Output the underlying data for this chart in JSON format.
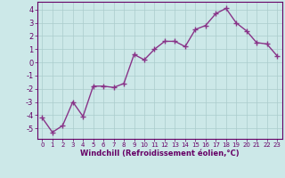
{
  "x": [
    0,
    1,
    2,
    3,
    4,
    5,
    6,
    7,
    8,
    9,
    10,
    11,
    12,
    13,
    14,
    15,
    16,
    17,
    18,
    19,
    20,
    21,
    22,
    23
  ],
  "y": [
    -4.2,
    -5.3,
    -4.8,
    -3.0,
    -4.1,
    -1.8,
    -1.8,
    -1.9,
    -1.6,
    0.6,
    0.2,
    1.0,
    1.6,
    1.6,
    1.2,
    2.5,
    2.8,
    3.7,
    4.1,
    3.0,
    2.4,
    1.5,
    1.4,
    0.5
  ],
  "line_color": "#883388",
  "marker": "+",
  "marker_size": 4,
  "bg_color": "#cce8e8",
  "grid_color": "#aacccc",
  "xlabel": "Windchill (Refroidissement éolien,°C)",
  "ylabel": "",
  "title": "",
  "xlim": [
    -0.5,
    23.5
  ],
  "ylim": [
    -5.8,
    4.6
  ],
  "yticks": [
    -5,
    -4,
    -3,
    -2,
    -1,
    0,
    1,
    2,
    3,
    4
  ],
  "xticks": [
    0,
    1,
    2,
    3,
    4,
    5,
    6,
    7,
    8,
    9,
    10,
    11,
    12,
    13,
    14,
    15,
    16,
    17,
    18,
    19,
    20,
    21,
    22,
    23
  ],
  "xlabel_color": "#660066",
  "tick_color": "#660066",
  "axis_color": "#660066",
  "line_color2": "#883388",
  "line_width": 1.0
}
